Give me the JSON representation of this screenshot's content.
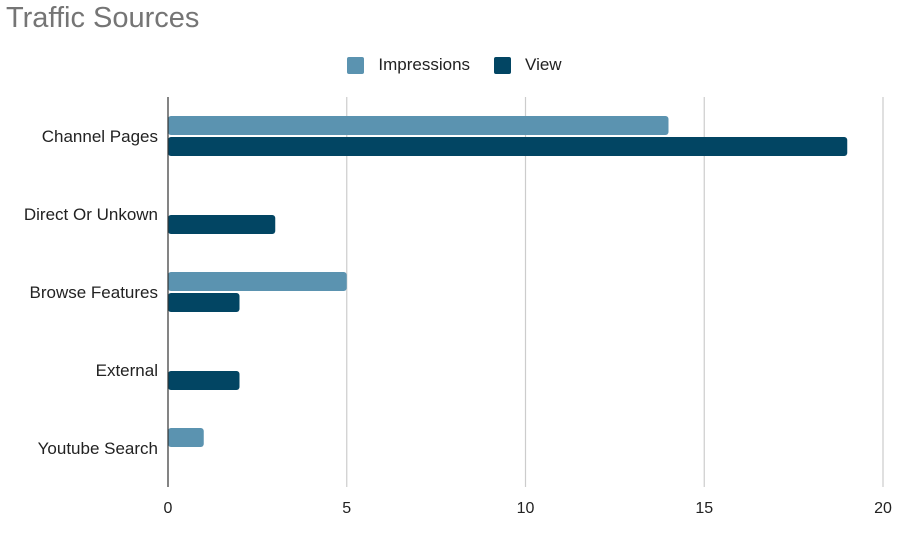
{
  "chart_data": {
    "type": "bar",
    "orientation": "horizontal",
    "title": "Traffic Sources",
    "categories": [
      "Channel Pages",
      "Direct Or Unkown",
      "Browse Features",
      "External",
      "Youtube Search"
    ],
    "series": [
      {
        "name": "Impressions",
        "color": "#5b93b0",
        "values": [
          14,
          0,
          5,
          0,
          1
        ]
      },
      {
        "name": "View",
        "color": "#024563",
        "values": [
          19,
          3,
          2,
          2,
          0
        ]
      }
    ],
    "xlim": [
      0,
      20
    ],
    "xticks": [
      "0",
      "5",
      "10",
      "15",
      "20"
    ],
    "grid": true,
    "legend_position": "top"
  }
}
